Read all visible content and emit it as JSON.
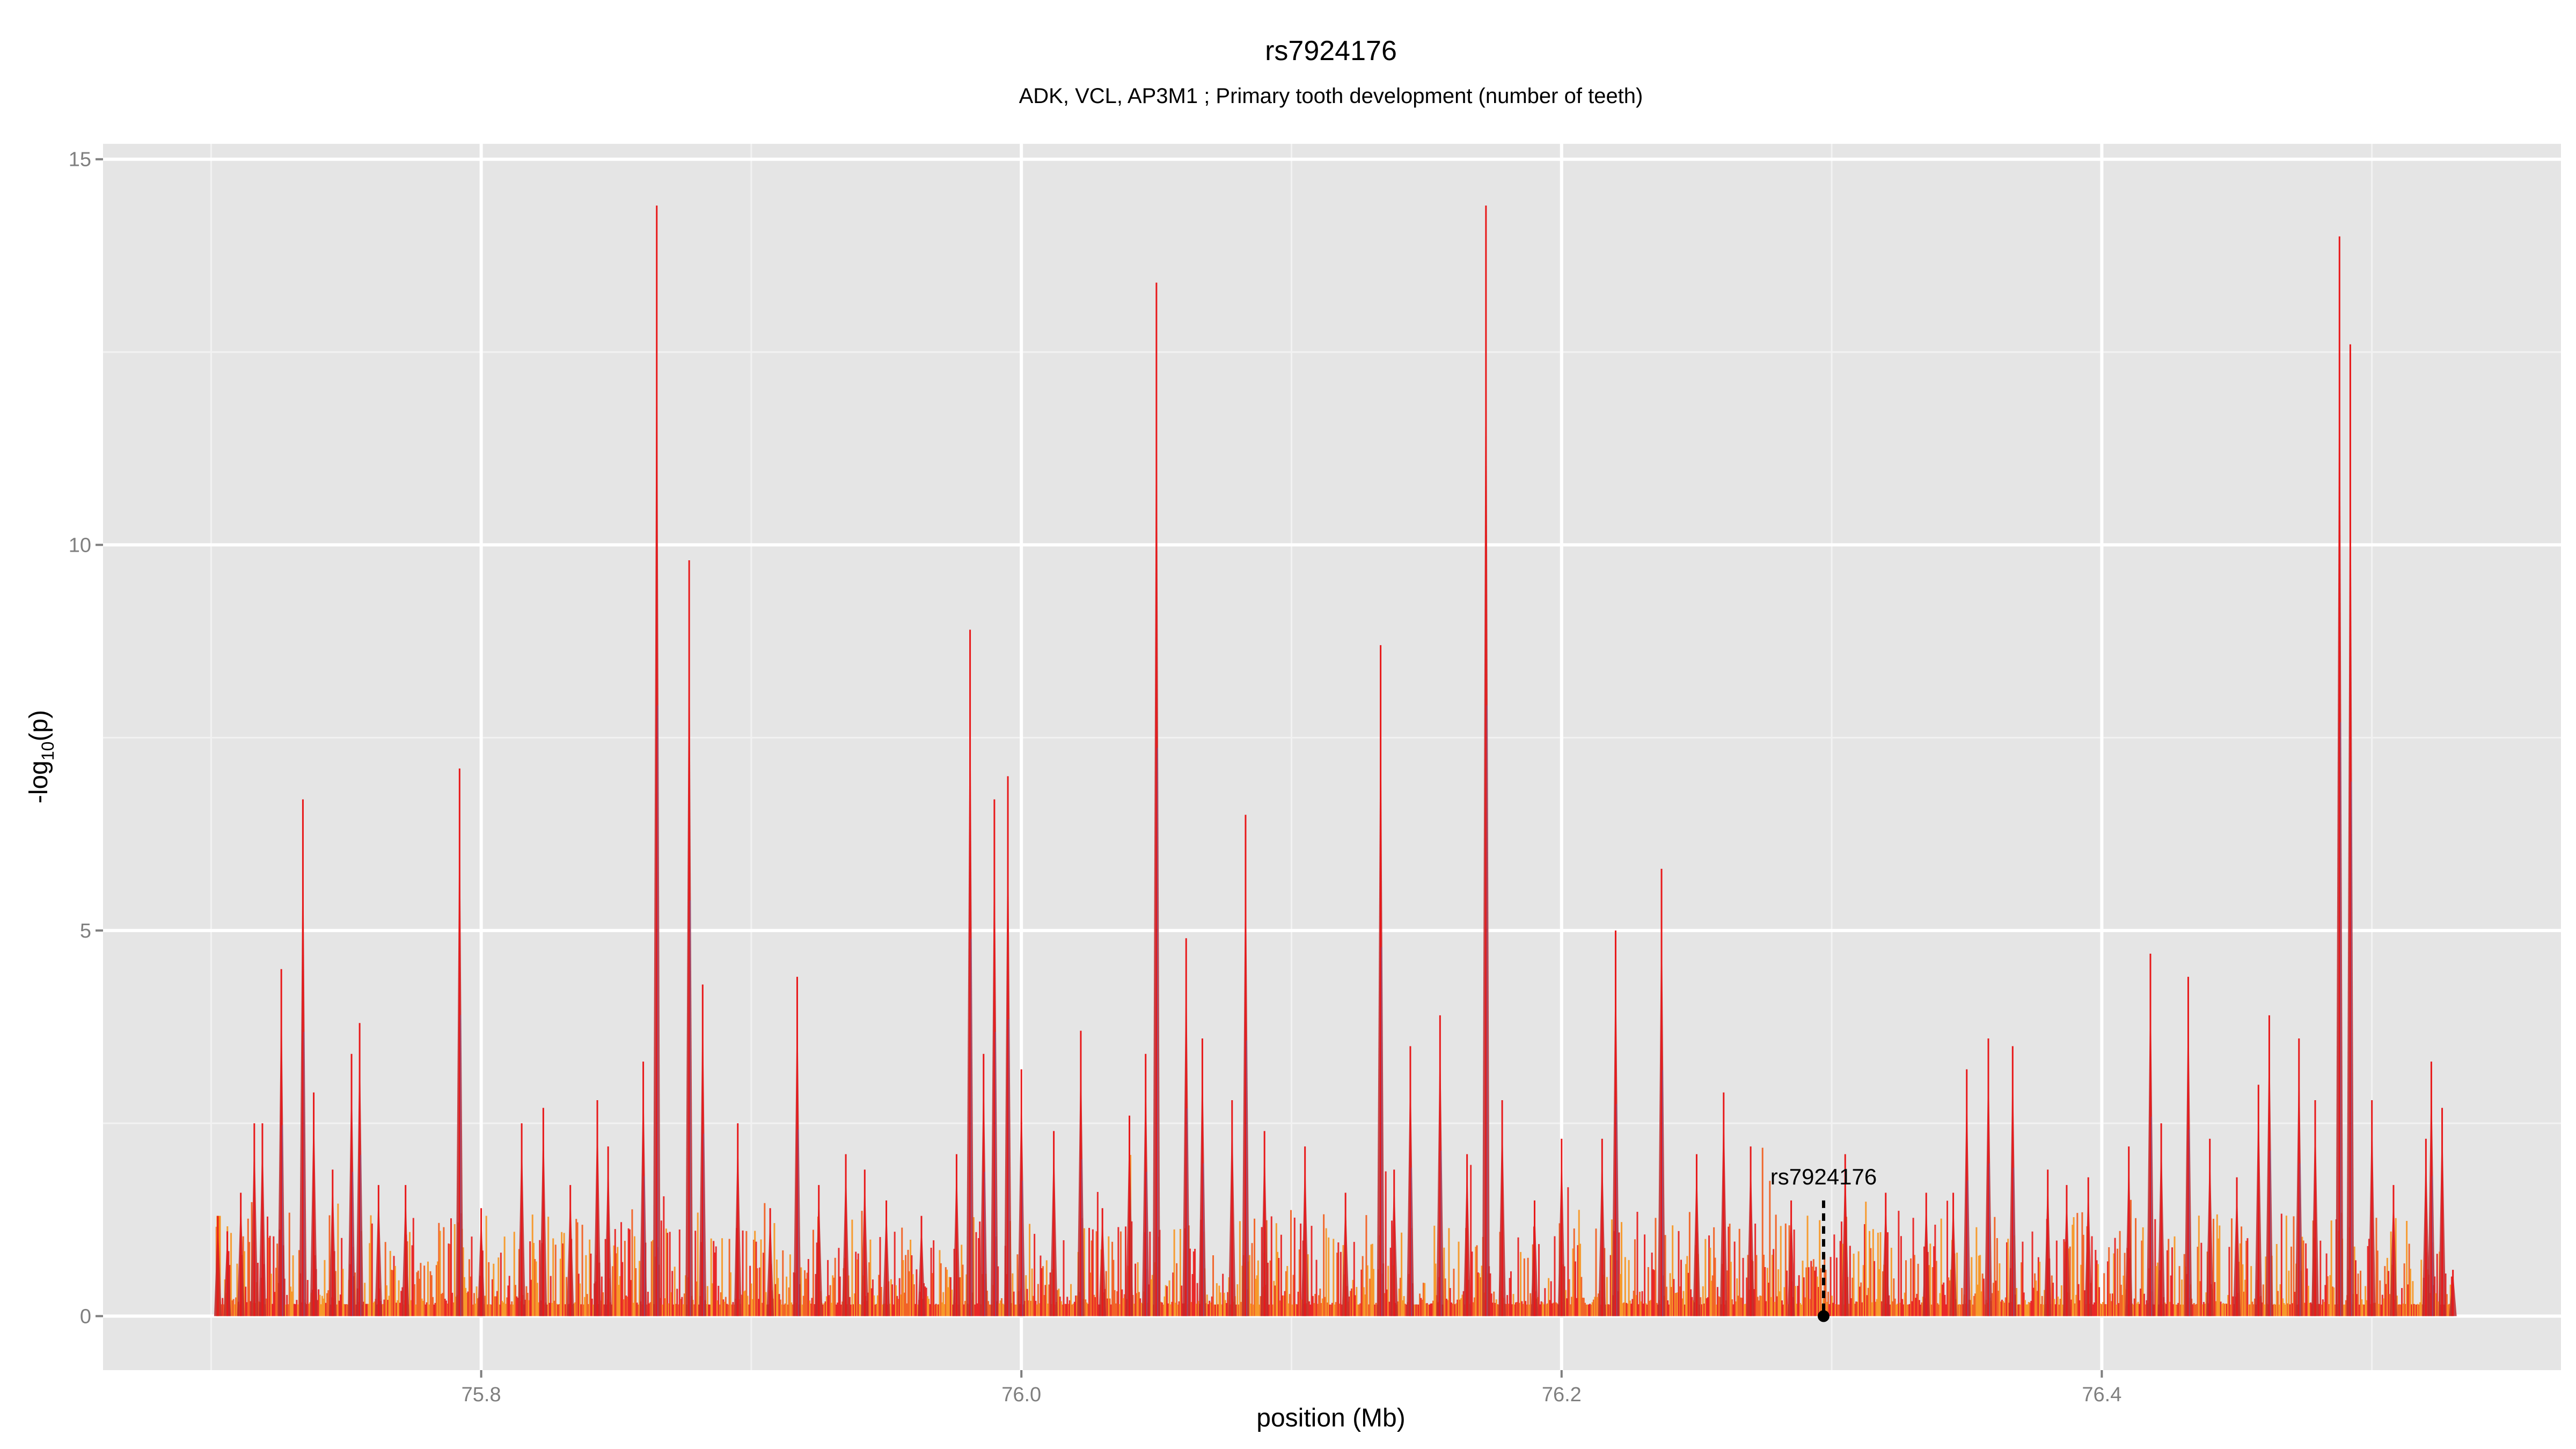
{
  "chart_data": {
    "type": "area",
    "title": "rs7924176",
    "subtitle": "ADK, VCL, AP3M1 ; Primary tooth development (number of teeth)",
    "xlabel": "position (Mb)",
    "ylabel_main": "-log",
    "ylabel_sub": "10",
    "ylabel_tail": "(p)",
    "xlim": [
      75.66,
      76.57
    ],
    "ylim": [
      -0.7,
      15.2
    ],
    "x_ticks": [
      75.8,
      76.0,
      76.2,
      76.4
    ],
    "x_tick_labels": [
      "75.8",
      "76.0",
      "76.2",
      "76.4"
    ],
    "y_ticks": [
      0,
      5,
      10,
      15
    ],
    "y_tick_labels": [
      "0",
      "5",
      "10",
      "15"
    ],
    "grid": true,
    "data_x_range": [
      75.702,
      76.53
    ],
    "colors": {
      "panel": "#e5e5e5",
      "grid_major": "#ffffff",
      "grid_minor": "#f2f2f2",
      "series": [
        "#e8191a",
        "#f25a1a",
        "#f7941d",
        "#c0292d",
        "#7a5a9a"
      ],
      "marker": "#000000"
    },
    "series": [
      {
        "peaks": [
          {
            "x": 75.7025,
            "y": 1.3
          },
          {
            "x": 75.706,
            "y": 1.1
          },
          {
            "x": 75.711,
            "y": 1.6
          },
          {
            "x": 75.716,
            "y": 2.5
          },
          {
            "x": 75.719,
            "y": 2.5
          },
          {
            "x": 75.726,
            "y": 4.5
          },
          {
            "x": 75.734,
            "y": 6.7
          },
          {
            "x": 75.738,
            "y": 2.9
          },
          {
            "x": 75.745,
            "y": 1.9
          },
          {
            "x": 75.752,
            "y": 3.4
          },
          {
            "x": 75.755,
            "y": 3.8
          },
          {
            "x": 75.762,
            "y": 1.7
          },
          {
            "x": 75.772,
            "y": 1.7
          },
          {
            "x": 75.792,
            "y": 7.1
          },
          {
            "x": 75.8,
            "y": 1.4
          },
          {
            "x": 75.815,
            "y": 2.5
          },
          {
            "x": 75.823,
            "y": 2.7
          },
          {
            "x": 75.833,
            "y": 1.7
          },
          {
            "x": 75.843,
            "y": 2.8
          },
          {
            "x": 75.847,
            "y": 2.2
          },
          {
            "x": 75.86,
            "y": 3.3
          },
          {
            "x": 75.865,
            "y": 14.4
          },
          {
            "x": 75.877,
            "y": 9.8
          },
          {
            "x": 75.882,
            "y": 4.3
          },
          {
            "x": 75.895,
            "y": 2.5
          },
          {
            "x": 75.907,
            "y": 1.4
          },
          {
            "x": 75.917,
            "y": 4.4
          },
          {
            "x": 75.925,
            "y": 1.7
          },
          {
            "x": 75.935,
            "y": 2.1
          },
          {
            "x": 75.942,
            "y": 1.9
          },
          {
            "x": 75.95,
            "y": 1.5
          },
          {
            "x": 75.963,
            "y": 1.3
          },
          {
            "x": 75.976,
            "y": 2.1
          },
          {
            "x": 75.981,
            "y": 8.9
          },
          {
            "x": 75.986,
            "y": 3.4
          },
          {
            "x": 75.99,
            "y": 6.7
          },
          {
            "x": 75.995,
            "y": 7.0
          },
          {
            "x": 76.0,
            "y": 3.2
          },
          {
            "x": 76.012,
            "y": 2.4
          },
          {
            "x": 76.022,
            "y": 3.7
          },
          {
            "x": 76.03,
            "y": 1.4
          },
          {
            "x": 76.04,
            "y": 2.6
          },
          {
            "x": 76.046,
            "y": 3.4
          },
          {
            "x": 76.05,
            "y": 13.4
          },
          {
            "x": 76.061,
            "y": 4.9
          },
          {
            "x": 76.067,
            "y": 3.6
          },
          {
            "x": 76.078,
            "y": 2.8
          },
          {
            "x": 76.083,
            "y": 6.5
          },
          {
            "x": 76.09,
            "y": 2.4
          },
          {
            "x": 76.105,
            "y": 2.2
          },
          {
            "x": 76.12,
            "y": 1.6
          },
          {
            "x": 76.133,
            "y": 8.7
          },
          {
            "x": 76.138,
            "y": 1.9
          },
          {
            "x": 76.144,
            "y": 3.5
          },
          {
            "x": 76.155,
            "y": 3.9
          },
          {
            "x": 76.165,
            "y": 2.1
          },
          {
            "x": 76.172,
            "y": 14.4
          },
          {
            "x": 76.178,
            "y": 2.8
          },
          {
            "x": 76.19,
            "y": 1.5
          },
          {
            "x": 76.2,
            "y": 2.3
          },
          {
            "x": 76.215,
            "y": 2.3
          },
          {
            "x": 76.22,
            "y": 5.0
          },
          {
            "x": 76.237,
            "y": 5.8
          },
          {
            "x": 76.25,
            "y": 2.1
          },
          {
            "x": 76.26,
            "y": 2.9
          },
          {
            "x": 76.27,
            "y": 2.2
          },
          {
            "x": 76.285,
            "y": 1.5
          },
          {
            "x": 76.305,
            "y": 2.1
          },
          {
            "x": 76.32,
            "y": 1.6
          },
          {
            "x": 76.335,
            "y": 1.6
          },
          {
            "x": 76.345,
            "y": 1.6
          },
          {
            "x": 76.35,
            "y": 3.2
          },
          {
            "x": 76.358,
            "y": 3.6
          },
          {
            "x": 76.367,
            "y": 3.5
          },
          {
            "x": 76.38,
            "y": 1.9
          },
          {
            "x": 76.387,
            "y": 1.7
          },
          {
            "x": 76.395,
            "y": 1.8
          },
          {
            "x": 76.41,
            "y": 2.2
          },
          {
            "x": 76.418,
            "y": 4.7
          },
          {
            "x": 76.422,
            "y": 2.5
          },
          {
            "x": 76.432,
            "y": 4.4
          },
          {
            "x": 76.44,
            "y": 2.3
          },
          {
            "x": 76.45,
            "y": 1.8
          },
          {
            "x": 76.458,
            "y": 3.0
          },
          {
            "x": 76.462,
            "y": 3.9
          },
          {
            "x": 76.473,
            "y": 3.6
          },
          {
            "x": 76.479,
            "y": 2.8
          },
          {
            "x": 76.488,
            "y": 14.0
          },
          {
            "x": 76.492,
            "y": 12.6
          },
          {
            "x": 76.5,
            "y": 2.8
          },
          {
            "x": 76.508,
            "y": 1.7
          },
          {
            "x": 76.52,
            "y": 2.3
          },
          {
            "x": 76.522,
            "y": 3.3
          },
          {
            "x": 76.526,
            "y": 2.7
          },
          {
            "x": 76.53,
            "y": 0.6
          }
        ]
      }
    ],
    "annotations": [
      {
        "label": "rs7924176",
        "x": 76.297,
        "y": 0,
        "line_top": 1.5
      }
    ]
  }
}
